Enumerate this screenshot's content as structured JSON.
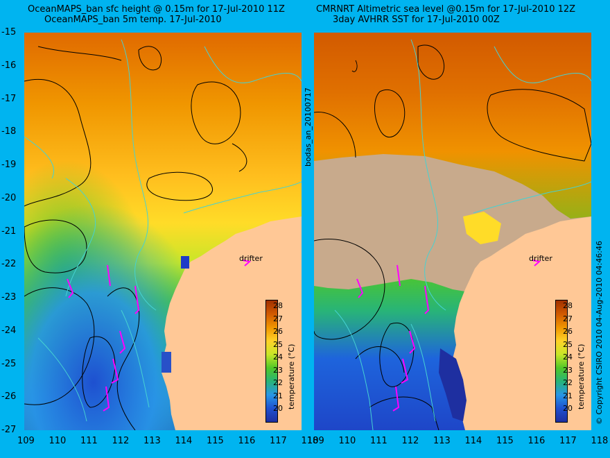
{
  "left_panel": {
    "title_line1": "OceanMAPS_ban sfc height @ 0.15m for 17-Jul-2010 11Z",
    "title_line2": "OceanMAPS_ban 5m temp. 17-Jul-2010"
  },
  "right_panel": {
    "title_line1": "CMRNRT Altimetric sea level  @0.15m  for 17-Jul-2010 12Z",
    "title_line2": "3day AVHRR SST for 17-Jul-2010 00Z"
  },
  "side_label_left": "bodas_an_20100717",
  "side_label_right": "© Copyright CSIRO 2010   04-Aug-2010 04:46:46",
  "drifter_label": "drifter",
  "colorbar": {
    "title": "temperature (°C)",
    "ticks": [
      "28",
      "27",
      "26",
      "25",
      "24",
      "23",
      "22",
      "21",
      "20"
    ]
  },
  "y_axis_ticks": [
    "-15",
    "-16",
    "-17",
    "-18",
    "-19",
    "-20",
    "-21",
    "-22",
    "-23",
    "-24",
    "-25",
    "-26",
    "-27"
  ],
  "x_axis_ticks": [
    "109",
    "110",
    "111",
    "112",
    "113",
    "114",
    "115",
    "116",
    "117",
    "118"
  ],
  "colors": {
    "background": "#00b4f0",
    "land": "#ffc896",
    "no_data": "#c8aa8c",
    "contour_black": "#000000",
    "contour_cyan": "#46d2d2",
    "vector": "#ff00ff"
  }
}
